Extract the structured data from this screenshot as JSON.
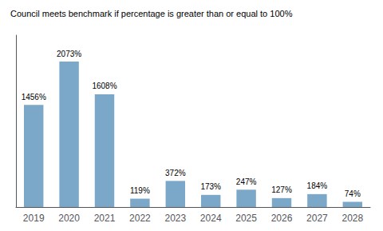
{
  "chart_data": {
    "type": "bar",
    "title": "Council meets benchmark if percentage is greater than or equal to 100%",
    "categories": [
      "2019",
      "2020",
      "2021",
      "2022",
      "2023",
      "2024",
      "2025",
      "2026",
      "2027",
      "2028"
    ],
    "values": [
      1456,
      2073,
      1608,
      119,
      372,
      173,
      247,
      127,
      184,
      74
    ],
    "value_labels": [
      "1456%",
      "2073%",
      "1608%",
      "119%",
      "372%",
      "173%",
      "247%",
      "127%",
      "184%",
      "74%"
    ],
    "color": "#7BA7C9",
    "ylim": [
      0,
      2450
    ],
    "data_labels": true,
    "tick_labels": "x",
    "grid": false
  }
}
